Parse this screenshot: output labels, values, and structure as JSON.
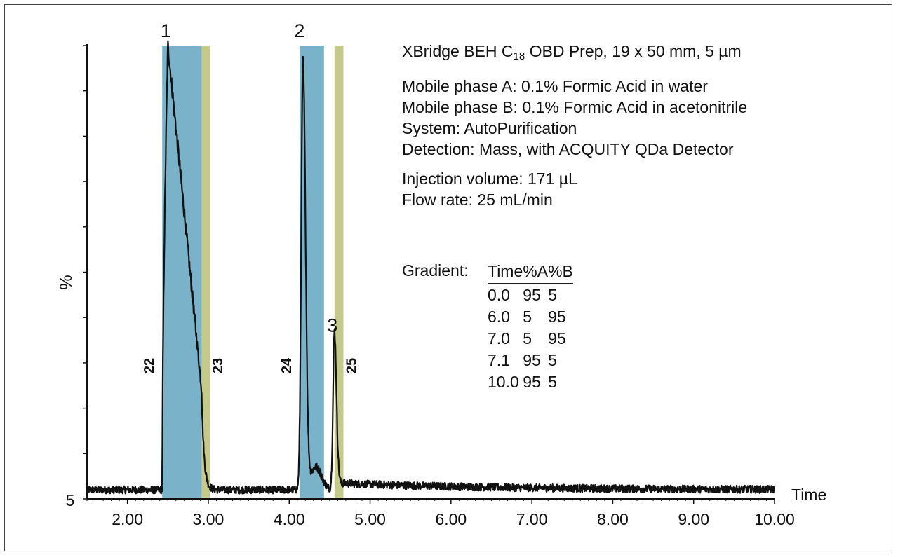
{
  "chart_data": {
    "type": "line",
    "title": "",
    "xlabel": "Time",
    "ylabel": "%",
    "xlim": [
      1.5,
      10.0
    ],
    "x_ticks": [
      "2.00",
      "3.00",
      "4.00",
      "5.00",
      "6.00",
      "7.00",
      "8.00",
      "9.00",
      "10.00"
    ],
    "y_bottom_label": "5",
    "baseline": 0.02,
    "peaks": [
      {
        "label": "1",
        "apex_x": 2.5,
        "height": 0.98
      },
      {
        "label": "2",
        "apex_x": 4.17,
        "height": 0.94
      },
      {
        "label": "3",
        "apex_x": 4.56,
        "height": 0.35
      }
    ],
    "fractions": [
      {
        "label": "22",
        "x_start": 2.43,
        "x_end": 2.92,
        "color": "#79b2c9"
      },
      {
        "label": "23",
        "x_start": 2.92,
        "x_end": 3.02,
        "color": "#c5c98a"
      },
      {
        "label": "24",
        "x_start": 4.13,
        "x_end": 4.43,
        "color": "#79b2c9"
      },
      {
        "label": "25",
        "x_start": 4.56,
        "x_end": 4.67,
        "color": "#c5c98a"
      }
    ]
  },
  "info": {
    "column_prefix": "XBridge  BEH C",
    "column_sub": "18",
    "column_suffix": "  OBD Prep, 19 x 50 mm, 5 µm",
    "mobile_a": "Mobile phase A: 0.1% Formic Acid in water",
    "mobile_b": "Mobile phase B: 0.1% Formic Acid in acetonitrile",
    "system": "System:  AutoPurification",
    "detection": "Detection: Mass, with ACQUITY QDa Detector",
    "injection": "Injection volume: 171 µL",
    "flow": "Flow rate: 25 mL/min"
  },
  "gradient": {
    "label": "Gradient:",
    "headers": [
      "Time",
      "%A",
      "%B"
    ],
    "rows": [
      [
        "0.0",
        "95",
        "5"
      ],
      [
        "6.0",
        "5",
        "95"
      ],
      [
        "7.0",
        "5",
        "95"
      ],
      [
        "7.1",
        "95",
        "5"
      ],
      [
        "10.0",
        "95",
        "5"
      ]
    ]
  }
}
